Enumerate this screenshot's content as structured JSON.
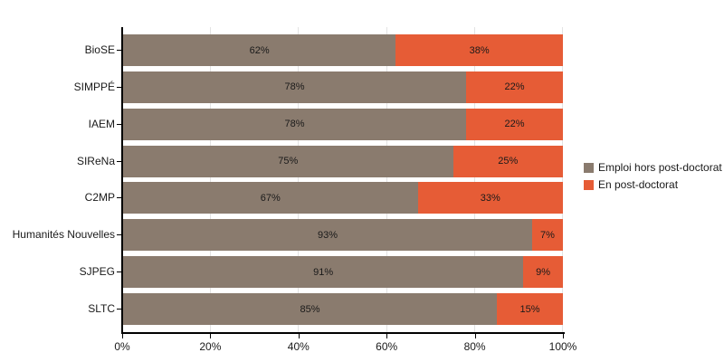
{
  "chart_data": {
    "type": "bar",
    "orientation": "horizontal",
    "stacked": true,
    "title": "",
    "xlabel": "",
    "ylabel": "",
    "categories": [
      "BioSE",
      "SIMPPÉ",
      "IAEM",
      "SIReNa",
      "C2MP",
      "Humanités Nouvelles",
      "SJPEG",
      "SLTC"
    ],
    "series": [
      {
        "name": "Emploi hors post-doctorat",
        "color": "#8a7b6e",
        "values": [
          62,
          78,
          78,
          75,
          67,
          93,
          91,
          85
        ]
      },
      {
        "name": "En post-doctorat",
        "color": "#e65c36",
        "values": [
          38,
          22,
          22,
          25,
          33,
          7,
          9,
          15
        ]
      }
    ],
    "value_label_format": "{value}%",
    "x_ticks": [
      "0%",
      "20%",
      "40%",
      "60%",
      "80%",
      "100%"
    ],
    "xlim": [
      0,
      100
    ],
    "grid": "vertical-light-gray",
    "legend_position": "right-center",
    "background": "#ffffff",
    "axis_color": "#000000",
    "gridline_color": "#e3e3e3"
  }
}
